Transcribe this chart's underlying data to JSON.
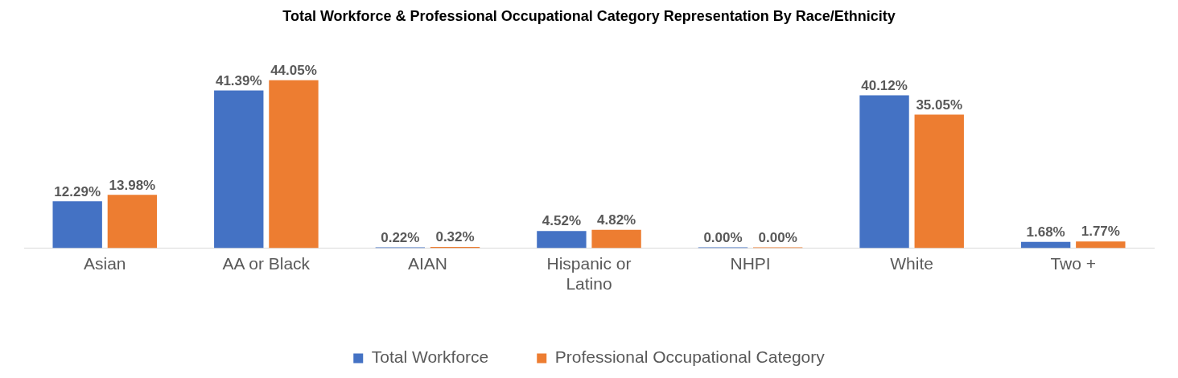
{
  "chart_data": {
    "type": "bar",
    "title": "Total Workforce & Professional Occupational Category Representation By Race/Ethnicity",
    "categories": [
      "Asian",
      "AA or Black",
      "AIAN",
      "Hispanic or Latino",
      "NHPI",
      "White",
      "Two +"
    ],
    "series": [
      {
        "name": "Total Workforce",
        "color": "#4472c4",
        "values": [
          12.29,
          41.39,
          0.22,
          4.52,
          0.0,
          40.12,
          1.68
        ],
        "value_labels": [
          "12.29%",
          "41.39%",
          "0.22%",
          "4.52%",
          "0.00%",
          "40.12%",
          "1.68%"
        ]
      },
      {
        "name": "Professional Occupational Category",
        "color": "#ed7d31",
        "values": [
          13.98,
          44.05,
          0.32,
          4.82,
          0.0,
          35.05,
          1.77
        ],
        "value_labels": [
          "13.98%",
          "44.05%",
          "0.32%",
          "4.82%",
          "0.00%",
          "35.05%",
          "1.77%"
        ]
      }
    ],
    "grid": false,
    "legend": "bottom",
    "tick_labels": "x"
  }
}
